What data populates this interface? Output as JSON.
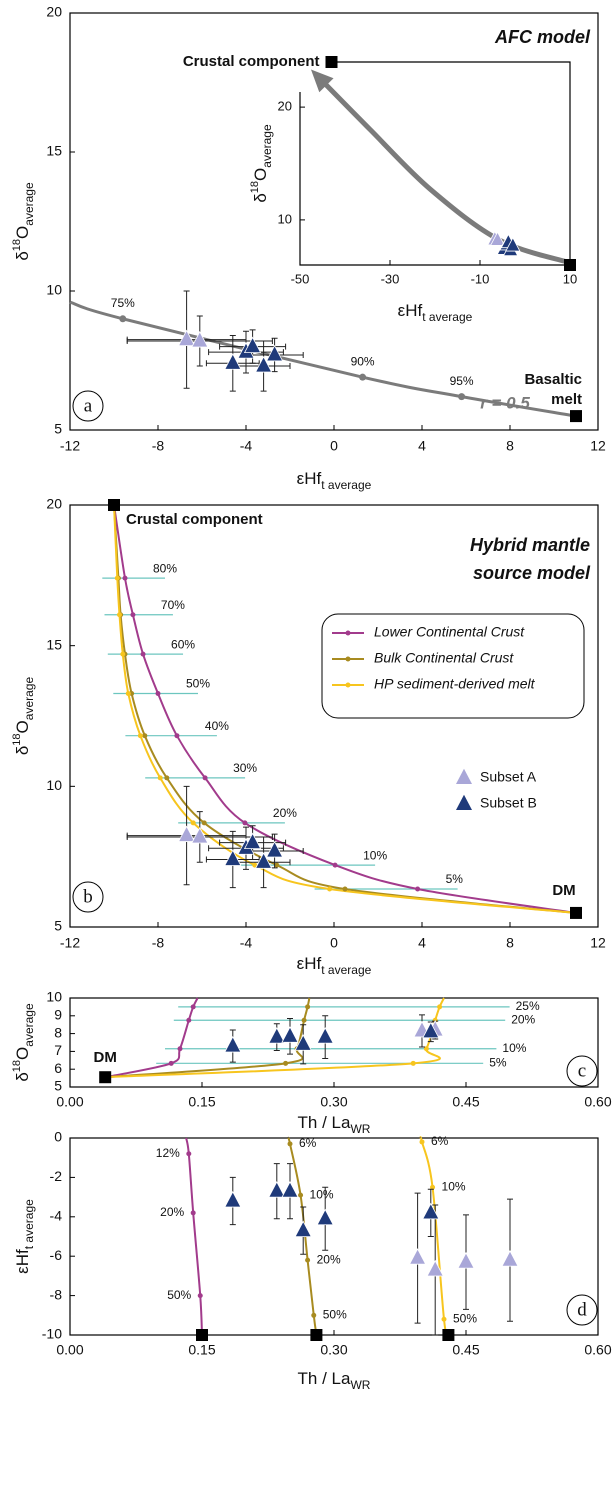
{
  "chart_data": [
    {
      "type": "scatter",
      "panel_label": "a",
      "title": "AFC model",
      "note": "r = 0.5",
      "xlabel": {
        "main": "εHf",
        "sub": "t average"
      },
      "ylabel": {
        "pre": "δ",
        "sup": "18",
        "main": "O",
        "sub": "average"
      },
      "xlim": [
        -12,
        12
      ],
      "xticks": [
        -12,
        -8,
        -4,
        0,
        4,
        8,
        12
      ],
      "ylim": [
        5,
        20
      ],
      "yticks": [
        5,
        10,
        15,
        20
      ],
      "curves": [
        {
          "color": "#7b7b7b",
          "x": [
            -12,
            -9.6,
            1.3,
            5.8,
            11
          ],
          "y": [
            9.6,
            9.0,
            6.9,
            6.2,
            5.5
          ],
          "labels": [
            null,
            "75%",
            "90%",
            "95%",
            null
          ]
        }
      ],
      "points": [
        {
          "color": "#a9a7d8",
          "x": [
            -6.7,
            -6.1
          ],
          "y": [
            8.25,
            8.2
          ],
          "xerr": [
            2.7,
            3.3
          ],
          "yerr": [
            1.75,
            0.9
          ]
        },
        {
          "color": "#1f3a7a",
          "x": [
            -4.6,
            -4.0,
            -3.7,
            -3.2,
            -2.7
          ],
          "y": [
            7.4,
            7.8,
            8.0,
            7.3,
            7.7
          ],
          "xerr": [
            1.2,
            1.7,
            1.5,
            1.2,
            1.3
          ],
          "yerr": [
            1.0,
            0.75,
            0.6,
            0.9,
            0.6
          ]
        }
      ],
      "endmembers": [
        {
          "x": 11,
          "y": 5.5,
          "label": [
            "Basaltic",
            "melt"
          ]
        }
      ],
      "inset": {
        "xlim": [
          -50,
          10
        ],
        "xticks": [
          -50,
          -30,
          -10,
          10
        ],
        "ylim": [
          6,
          24
        ],
        "yticks": [
          10,
          20
        ],
        "xlabel": {
          "main": "εHf",
          "sub": "t average"
        },
        "ylabel": {
          "pre": "δ",
          "sup": "18",
          "main": "O",
          "sub": "average"
        },
        "arrow": {
          "color": "#7b7b7b",
          "x": [
            10,
            -5.6,
            -21,
            -34.4,
            -46
          ],
          "y": [
            6.2,
            8.2,
            12.7,
            18,
            22.7
          ]
        },
        "points": [
          {
            "color": "#a9a7d8",
            "x": [
              -6.7,
              -6.1
            ],
            "y": [
              8.25,
              8.2
            ]
          },
          {
            "color": "#1f3a7a",
            "x": [
              -4.6,
              -4.0,
              -3.7,
              -3.2,
              -2.7
            ],
            "y": [
              7.4,
              7.8,
              8.0,
              7.3,
              7.7
            ]
          }
        ],
        "endmembers": [
          {
            "x": -43,
            "y": 24,
            "label": [
              "Crustal component"
            ]
          },
          {
            "x": 10,
            "y": 6
          }
        ]
      }
    },
    {
      "type": "scatter",
      "panel_label": "b",
      "title": [
        "Hybrid mantle",
        "source model"
      ],
      "xlabel": {
        "main": "εHf",
        "sub": "t average"
      },
      "ylabel": {
        "pre": "δ",
        "sup": "18",
        "main": "O",
        "sub": "average"
      },
      "xlim": [
        -12,
        12
      ],
      "xticks": [
        -12,
        -8,
        -4,
        0,
        4,
        8,
        12
      ],
      "ylim": [
        5,
        20
      ],
      "yticks": [
        5,
        10,
        15,
        20
      ],
      "curves": [
        {
          "name": "Lower Continental Crust",
          "color": "#a23b8c",
          "x": [
            -10,
            -9.5,
            -9.14,
            -8.68,
            -8.0,
            -7.14,
            -5.86,
            -4.05,
            0.05,
            3.8,
            11
          ],
          "y": [
            20,
            17.4,
            16.1,
            14.7,
            13.3,
            11.8,
            10.3,
            8.7,
            7.2,
            6.35,
            5.5
          ],
          "labels": [
            null,
            "80%",
            "70%",
            "60%",
            "50%",
            "40%",
            "30%",
            "20%",
            "10%",
            "5%",
            null
          ]
        },
        {
          "name": "Bulk Continental Crust",
          "color": "#a88b20",
          "x": [
            -10,
            -9.8,
            -9.7,
            -9.5,
            -9.2,
            -8.6,
            -7.6,
            -5.9,
            -2.6,
            0.5,
            11
          ],
          "y": [
            20,
            17.4,
            16.1,
            14.7,
            13.3,
            11.8,
            10.3,
            8.7,
            7.2,
            6.35,
            5.5
          ]
        },
        {
          "name": "HP sediment-derived melt",
          "color": "#f7c51e",
          "x": [
            -10,
            -9.85,
            -9.75,
            -9.6,
            -9.35,
            -8.8,
            -7.9,
            -6.4,
            -3.6,
            -0.2,
            11
          ],
          "y": [
            20,
            17.4,
            16.1,
            14.7,
            13.3,
            11.8,
            10.3,
            8.7,
            7.2,
            6.35,
            5.5
          ]
        }
      ],
      "points": [
        {
          "name": "Subset A",
          "color": "#a9a7d8",
          "x": [
            -6.7,
            -6.1
          ],
          "y": [
            8.25,
            8.2
          ],
          "xerr": [
            2.7,
            3.3
          ],
          "yerr": [
            1.75,
            0.9
          ]
        },
        {
          "name": "Subset B",
          "color": "#1f3a7a",
          "x": [
            -4.6,
            -4.0,
            -3.7,
            -3.2,
            -2.7
          ],
          "y": [
            7.4,
            7.8,
            8.0,
            7.3,
            7.7
          ],
          "xerr": [
            1.2,
            1.7,
            1.5,
            1.2,
            1.3
          ],
          "yerr": [
            1.0,
            0.75,
            0.6,
            0.9,
            0.6
          ]
        }
      ],
      "endmembers": [
        {
          "x": -10,
          "y": 20,
          "label": [
            "Crustal component"
          ]
        },
        {
          "x": 11,
          "y": 5.5,
          "label": [
            "DM"
          ]
        }
      ]
    },
    {
      "type": "scatter",
      "panel_label": "c",
      "xlabel": {
        "main": "Th / La",
        "sub": "WR"
      },
      "ylabel": {
        "pre": "δ",
        "sup": "18",
        "main": "O",
        "sub": "average"
      },
      "xlim": [
        0,
        0.6
      ],
      "xticks": [
        {
          "value": 0,
          "label": "0.00"
        },
        0.15,
        {
          "value": 0.3,
          "label": "0.30"
        },
        0.45,
        {
          "value": 0.6,
          "label": "0.60"
        }
      ],
      "ylim": [
        5,
        10
      ],
      "yticks": [
        5,
        6,
        7,
        8,
        9,
        10
      ],
      "curves": [
        {
          "color": "#a23b8c",
          "x": [
            0.04,
            0.115,
            0.125,
            0.135,
            0.14,
            0.145
          ],
          "y": [
            5.55,
            6.33,
            7.15,
            8.75,
            9.5,
            10
          ]
        },
        {
          "color": "#a88b20",
          "x": [
            0.04,
            0.245,
            0.258,
            0.266,
            0.27,
            0.272
          ],
          "y": [
            5.55,
            6.33,
            7.15,
            8.75,
            9.5,
            10
          ]
        },
        {
          "color": "#f7c51e",
          "x": [
            0.04,
            0.39,
            0.405,
            0.415,
            0.42,
            0.425
          ],
          "y": [
            5.55,
            6.33,
            7.15,
            8.75,
            9.5,
            10
          ],
          "labels": [
            null,
            "5%",
            "10%",
            "20%",
            "25%",
            null
          ]
        }
      ],
      "points": [
        {
          "color": "#a9a7d8",
          "x": [
            0.4,
            0.415
          ],
          "y": [
            8.15,
            8.2
          ],
          "yerr": [
            0.9,
            0.5
          ]
        },
        {
          "color": "#1f3a7a",
          "x": [
            0.185,
            0.235,
            0.25,
            0.265,
            0.29,
            0.41
          ],
          "y": [
            7.3,
            7.8,
            7.85,
            7.4,
            7.8,
            8.1
          ],
          "yerr": [
            0.9,
            0.75,
            1.0,
            1.1,
            1.2,
            0.55
          ]
        }
      ],
      "endmembers": [
        {
          "x": 0.04,
          "y": 5.55,
          "label": [
            "DM"
          ]
        }
      ]
    },
    {
      "type": "scatter",
      "panel_label": "d",
      "xlabel": {
        "main": "Th / La",
        "sub": "WR"
      },
      "ylabel": {
        "main": "εHf",
        "sub": "t average"
      },
      "xlim": [
        0,
        0.6
      ],
      "xticks": [
        {
          "value": 0,
          "label": "0.00"
        },
        0.15,
        {
          "value": 0.3,
          "label": "0.30"
        },
        0.45,
        {
          "value": 0.6,
          "label": "0.60"
        }
      ],
      "ylim": [
        -10,
        0
      ],
      "yticks": [
        -10,
        -8,
        -6,
        -4,
        -2,
        0
      ],
      "curves": [
        {
          "color": "#a23b8c",
          "x": [
            0.15,
            0.148,
            0.14,
            0.135,
            0.132
          ],
          "y": [
            -10,
            -8,
            -3.8,
            -0.8,
            0
          ],
          "labels": [
            null,
            "50%",
            "20%",
            "12%",
            null
          ]
        },
        {
          "color": "#a88b20",
          "x": [
            0.28,
            0.277,
            0.27,
            0.262,
            0.25,
            0.248
          ],
          "y": [
            -10,
            -9,
            -6.2,
            -2.9,
            -0.3,
            0
          ],
          "labels": [
            null,
            "50%",
            "20%",
            "10%",
            "6%",
            null
          ]
        },
        {
          "color": "#f7c51e",
          "x": [
            0.43,
            0.425,
            0.412,
            0.4,
            0.398
          ],
          "y": [
            -10,
            -9.2,
            -2.5,
            -0.2,
            0
          ],
          "labels": [
            null,
            "50%",
            "10%",
            "6%",
            null
          ]
        }
      ],
      "points": [
        {
          "color": "#a9a7d8",
          "x": [
            0.395,
            0.415,
            0.45,
            0.5
          ],
          "y": [
            -6.1,
            -6.7,
            -6.3,
            -6.2
          ],
          "yerr": [
            3.3,
            3.3,
            2.4,
            3.1
          ]
        },
        {
          "color": "#1f3a7a",
          "x": [
            0.185,
            0.235,
            0.25,
            0.265,
            0.29,
            0.41
          ],
          "y": [
            -3.2,
            -2.7,
            -2.7,
            -4.7,
            -4.1,
            -3.8
          ],
          "yerr": [
            1.2,
            1.4,
            1.4,
            1.2,
            1.6,
            1.2
          ]
        }
      ],
      "endmembers": [
        {
          "x": 0.15,
          "y": -10
        },
        {
          "x": 0.28,
          "y": -10
        },
        {
          "x": 0.43,
          "y": -10
        }
      ]
    }
  ]
}
